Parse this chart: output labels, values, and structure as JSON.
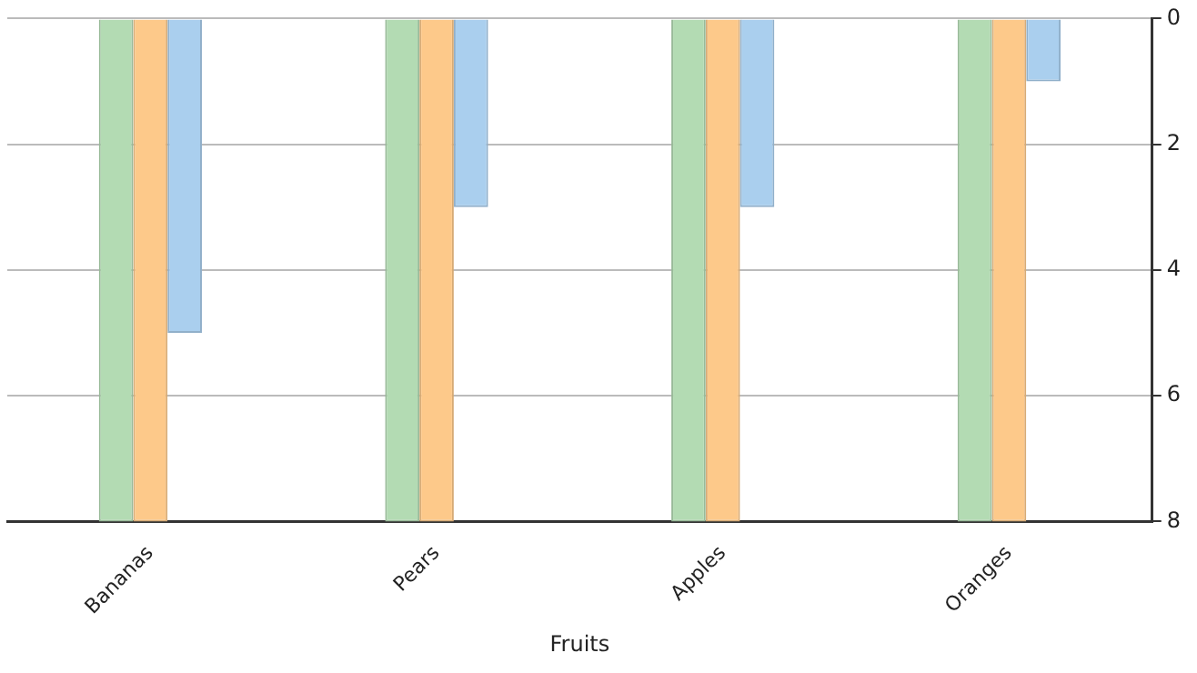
{
  "chart_data": {
    "type": "bar",
    "xlabel": "Fruits",
    "categories": [
      "Bananas",
      "Pears",
      "Apples",
      "Oranges"
    ],
    "series": [
      {
        "color": "#b3dbb3",
        "values": [
          8,
          8,
          8,
          8
        ]
      },
      {
        "color": "#fdc98a",
        "values": [
          8,
          8,
          8,
          8
        ]
      },
      {
        "color": "#aacfee",
        "values": [
          5,
          3,
          3,
          1
        ]
      }
    ],
    "ylim": [
      8,
      0
    ],
    "yticks": [
      0,
      2,
      4,
      6,
      8
    ],
    "grid": "y",
    "legend": false
  }
}
